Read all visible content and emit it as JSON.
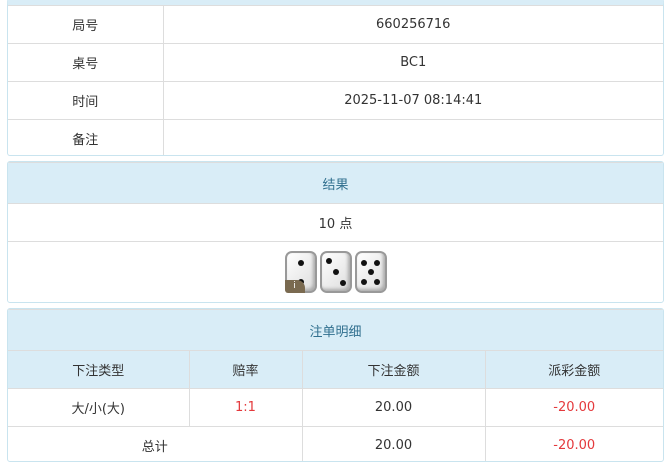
{
  "info": {
    "rows": [
      {
        "label": "局号",
        "value": "660256716"
      },
      {
        "label": "桌号",
        "value": "BC1"
      },
      {
        "label": "时间",
        "value": "2025-11-07 08:14:41"
      },
      {
        "label": "备注",
        "value": ""
      }
    ]
  },
  "result": {
    "title": "结果",
    "points": "10 点",
    "dice": [
      2,
      3,
      5
    ],
    "info_badge": "i"
  },
  "bets": {
    "title": "注单明细",
    "headers": [
      "下注类型",
      "赔率",
      "下注金额",
      "派彩金额"
    ],
    "rows": [
      {
        "type": "大/小(大)",
        "odds": "1:1",
        "amount": "20.00",
        "payout": "-20.00"
      }
    ],
    "total": {
      "label": "总计",
      "amount": "20.00",
      "payout": "-20.00"
    }
  },
  "colors": {
    "header_bg": "#d9edf7",
    "header_text": "#31708f",
    "negative": "#e4393c"
  }
}
